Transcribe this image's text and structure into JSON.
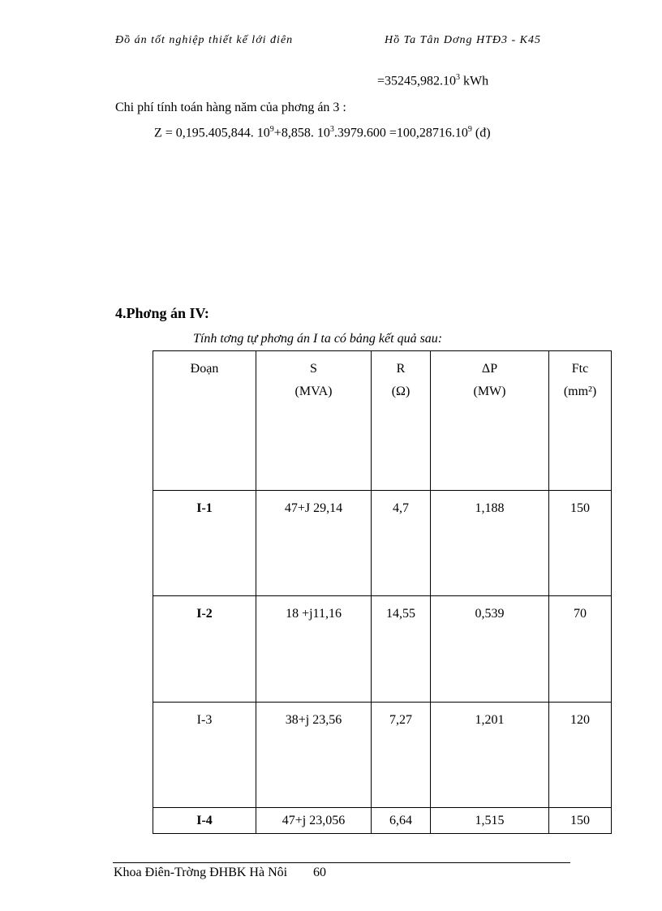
{
  "header": {
    "left": "Đồ án tốt nghiệp thiết kế lới  điên",
    "right": "Hồ Ta Tân Dơng  HTĐ3 - K45"
  },
  "energy_result": {
    "prefix": "=35245,982.10",
    "exp": "3",
    "unit": " kWh"
  },
  "cost_heading": "Chi phí tính toán hàng năm của phơng  án 3 :",
  "cost_formula": {
    "a": "Z = 0,195.405,844. 10",
    "e1": "9",
    "b": "+8,858. 10",
    "e2": "3",
    "c": ".3979.600 =100,28716.10",
    "e3": "9",
    "d": " (đ)"
  },
  "section_title": "4.Phơng  án IV:",
  "table_caption": "Tính tơng  tự phơng  án I ta có bảng kết quả sau:",
  "table": {
    "headers": [
      [
        "Đoạn",
        ""
      ],
      [
        "S",
        "(MVA)"
      ],
      [
        "R",
        "(Ω)"
      ],
      [
        "ΔP",
        "(MW)"
      ],
      [
        "Ftc",
        "(mm²)"
      ]
    ],
    "rows": [
      {
        "doan": "I-1",
        "s": "47+J 29,14",
        "r": "4,7",
        "dp": "1,188",
        "f": "150"
      },
      {
        "doan": "I-2",
        "s": "18 +j11,16",
        "r": "14,55",
        "dp": "0,539",
        "f": "70"
      },
      {
        "doan": "I-3",
        "s": "38+j 23,56",
        "r": "7,27",
        "dp": "1,201",
        "f": "120"
      },
      {
        "doan": "I-4",
        "s": "47+j 23,056",
        "r": "6,64",
        "dp": "1,515",
        "f": "150"
      }
    ]
  },
  "footer": {
    "left": "Khoa Điên-Trờng  ĐHBK Hà Nôi",
    "page": "60"
  }
}
